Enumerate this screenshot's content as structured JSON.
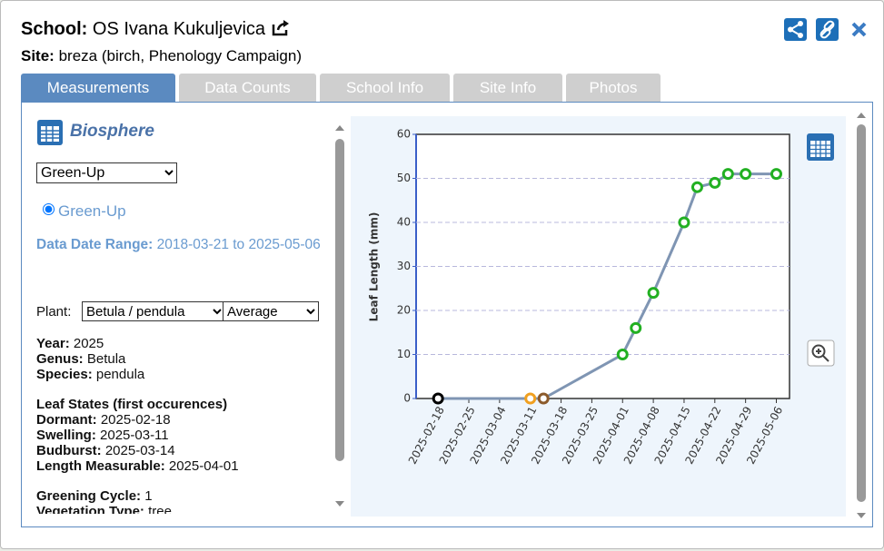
{
  "header": {
    "school_label": "School:",
    "school": "OS Ivana Kukuljevica",
    "site_label": "Site:",
    "site": "breza (birch, Phenology Campaign)"
  },
  "tabs": [
    "Measurements",
    "Data Counts",
    "School Info",
    "Site Info",
    "Photos"
  ],
  "panel": {
    "title": "Biosphere",
    "protocol_select": "Green-Up",
    "radio": "Green-Up",
    "date_range_label": "Data Date Range:",
    "date_range": "2018-03-21 to 2025-05-06",
    "plant_label": "Plant:",
    "plant_select": "Betula / pendula",
    "stat_select": "Average",
    "details": [
      {
        "label": "Year:",
        "value": "2025"
      },
      {
        "label": "Genus:",
        "value": "Betula"
      },
      {
        "label": "Species:",
        "value": "pendula"
      }
    ],
    "leaf_states_title": "Leaf States (first occurences)",
    "leaf_states": [
      {
        "label": "Dormant:",
        "value": "2025-02-18"
      },
      {
        "label": "Swelling:",
        "value": "2025-03-11"
      },
      {
        "label": "Budburst:",
        "value": "2025-03-14"
      },
      {
        "label": "Length Measurable:",
        "value": "2025-04-01"
      }
    ],
    "extra": [
      {
        "label": "Greening Cycle:",
        "value": "1"
      },
      {
        "label": "Vegetation Type:",
        "value": "tree"
      }
    ]
  },
  "chart_data": {
    "type": "line",
    "y_label": "Leaf Length (mm)",
    "x": [
      "2025-02-18",
      "2025-03-11",
      "2025-03-14",
      "2025-04-01",
      "2025-04-04",
      "2025-04-08",
      "2025-04-15",
      "2025-04-18",
      "2025-04-22",
      "2025-04-25",
      "2025-04-29",
      "2025-05-06"
    ],
    "series": [
      {
        "color": "#7f95b3",
        "values": [
          0,
          0,
          0,
          10,
          16,
          24,
          40,
          48,
          49,
          51,
          51,
          51
        ],
        "point_colors": [
          "#000000",
          "#f0a020",
          "#8b5a2b",
          "#22b022",
          "#22b022",
          "#22b022",
          "#22b022",
          "#22b022",
          "#22b022",
          "#22b022",
          "#22b022",
          "#22b022"
        ]
      }
    ],
    "xlim": [
      "2025-02-13",
      "2025-05-09"
    ],
    "xticks": [
      "2025-02-18",
      "2025-02-25",
      "2025-03-04",
      "2025-03-11",
      "2025-03-18",
      "2025-03-25",
      "2025-04-01",
      "2025-04-08",
      "2025-04-15",
      "2025-04-22",
      "2025-04-29",
      "2025-05-06"
    ],
    "ylim": [
      0,
      60
    ],
    "yticks": [
      0,
      10,
      20,
      30,
      40,
      50,
      60
    ],
    "grid": true
  }
}
